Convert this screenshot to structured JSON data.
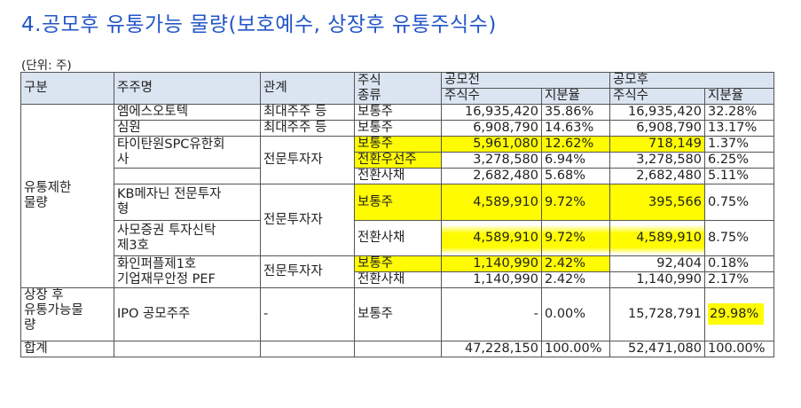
{
  "title": "4.공모후 유통가능 물량(보호예수, 상장후 유통주식수)",
  "unit": "(단위: 주)",
  "header": {
    "category": "구분",
    "shareholder": "주주명",
    "relation": "관계",
    "stock_type": "주식\n종류",
    "before_ipo": "공모전",
    "after_ipo": "공모후",
    "shares": "주식수",
    "ratio": "지분율"
  },
  "groups": {
    "restricted": "유통제한\n물량",
    "tradable": "상장 후\n유통가능물\n량"
  },
  "rows": [
    {
      "name": "엠에스오토텍",
      "relation": "최대주주 등",
      "type": "보통주",
      "pre_shares": "16,935,420",
      "pre_ratio": "35.86%",
      "post_shares": "16,935,420",
      "post_ratio": "32.28%"
    },
    {
      "name": "심원",
      "relation": "최대주주 등",
      "type": "보통주",
      "pre_shares": "6,908,790",
      "pre_ratio": "14.63%",
      "post_shares": "6,908,790",
      "post_ratio": "13.17%"
    },
    {
      "name": "타이탄원SPC유한회\n사",
      "relation": "전문투자자",
      "type": "보통주",
      "pre_shares": "5,961,080",
      "pre_ratio": "12.62%",
      "post_shares": "718,149",
      "post_ratio": "1.37%"
    },
    {
      "type": "전환우선주",
      "pre_shares": "3,278,580",
      "pre_ratio": "6.94%",
      "post_shares": "3,278,580",
      "post_ratio": "6.25%"
    },
    {
      "type": "전환사채",
      "pre_shares": "2,682,480",
      "pre_ratio": "5.68%",
      "post_shares": "2,682,480",
      "post_ratio": "5.11%"
    },
    {
      "name": "KB메자닌 전문투자\n형",
      "relation": "전문투자자",
      "type": "보통주",
      "pre_shares": "4,589,910",
      "pre_ratio": "9.72%",
      "post_shares": "395,566",
      "post_ratio": "0.75%"
    },
    {
      "name": "사모증권 투자신탁\n제3호",
      "type": "전환사채",
      "pre_shares": "4,589,910",
      "pre_ratio": "9.72%",
      "post_shares": "4,589,910",
      "post_ratio": "8.75%"
    },
    {
      "name": "화인퍼플제1호\n기업재무안정 PEF",
      "relation": "전문투자자",
      "type": "보통주",
      "pre_shares": "1,140,990",
      "pre_ratio": "2.42%",
      "post_shares": "92,404",
      "post_ratio": "0.18%"
    },
    {
      "type": "전환사채",
      "pre_shares": "1,140,990",
      "pre_ratio": "2.42%",
      "post_shares": "1,140,990",
      "post_ratio": "2.17%"
    },
    {
      "name": "IPO 공모주주",
      "relation": "-",
      "type": "보통주",
      "pre_shares": "-",
      "pre_ratio": "0.00%",
      "post_shares": "15,728,791",
      "post_ratio": "29.98%"
    }
  ],
  "total": {
    "label": "합계",
    "pre_shares": "47,228,150",
    "pre_ratio": "100.00%",
    "post_shares": "52,471,080",
    "post_ratio": "100.00%"
  },
  "highlight_color": "#fffb00",
  "header_bg": "#dbe5f1",
  "title_color": "#2356c8"
}
